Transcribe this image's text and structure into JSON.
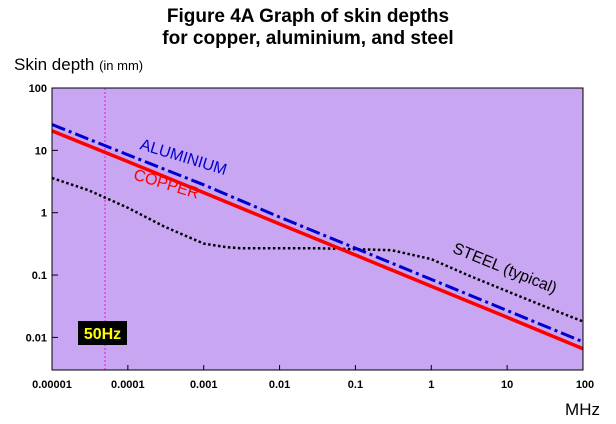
{
  "title": {
    "line1": "Figure 4A   Graph of skin depths",
    "line2": "for copper, aluminium, and steel"
  },
  "y_axis": {
    "label": "Skin depth",
    "unit": "(in mm)"
  },
  "x_axis": {
    "unit": "MHz"
  },
  "colors": {
    "plot_background": "#c8a6f2",
    "copper": "#ff0000",
    "aluminium": "#0000d0",
    "steel": "#000000",
    "marker_line": "#ff00ff",
    "badge_bg": "#000000",
    "badge_text": "#ffff00"
  },
  "chart_data": {
    "type": "line",
    "xscale": "log",
    "yscale": "log",
    "xlim": [
      1e-05,
      100
    ],
    "ylim": [
      0.003,
      100
    ],
    "x_ticks": [
      "0.00001",
      "0.0001",
      "0.001",
      "0.01",
      "0.1",
      "1",
      "10",
      "100"
    ],
    "x_tick_values": [
      1e-05,
      0.0001,
      0.001,
      0.01,
      0.1,
      1,
      10,
      100
    ],
    "y_ticks": [
      "100",
      "10",
      "1",
      "0.1",
      "0.01"
    ],
    "y_tick_values": [
      100,
      10,
      1,
      0.1,
      0.01
    ],
    "grid": false,
    "series": [
      {
        "name": "ALUMINIUM",
        "style": "dash-dot",
        "x": [
          1e-05,
          0.0001,
          0.001,
          0.01,
          0.1,
          1,
          10,
          100
        ],
        "y": [
          26,
          8.5,
          2.8,
          0.85,
          0.27,
          0.085,
          0.027,
          0.0085
        ]
      },
      {
        "name": "COPPER",
        "style": "solid",
        "x": [
          1e-05,
          0.0001,
          0.001,
          0.01,
          0.1,
          1,
          10,
          100
        ],
        "y": [
          20.5,
          6.6,
          2.1,
          0.66,
          0.21,
          0.066,
          0.021,
          0.0066
        ]
      },
      {
        "name": "STEEL (typical)",
        "style": "dotted",
        "x": [
          1e-05,
          3e-05,
          0.0001,
          0.0003,
          0.001,
          0.002,
          0.003,
          0.01,
          0.03,
          0.1,
          0.3,
          1,
          3,
          10,
          30,
          100
        ],
        "y": [
          3.6,
          2.3,
          1.2,
          0.6,
          0.32,
          0.28,
          0.27,
          0.27,
          0.27,
          0.26,
          0.25,
          0.18,
          0.1,
          0.055,
          0.032,
          0.018
        ]
      }
    ],
    "annotations": [
      {
        "text": "50Hz",
        "x": 5e-05
      }
    ]
  }
}
